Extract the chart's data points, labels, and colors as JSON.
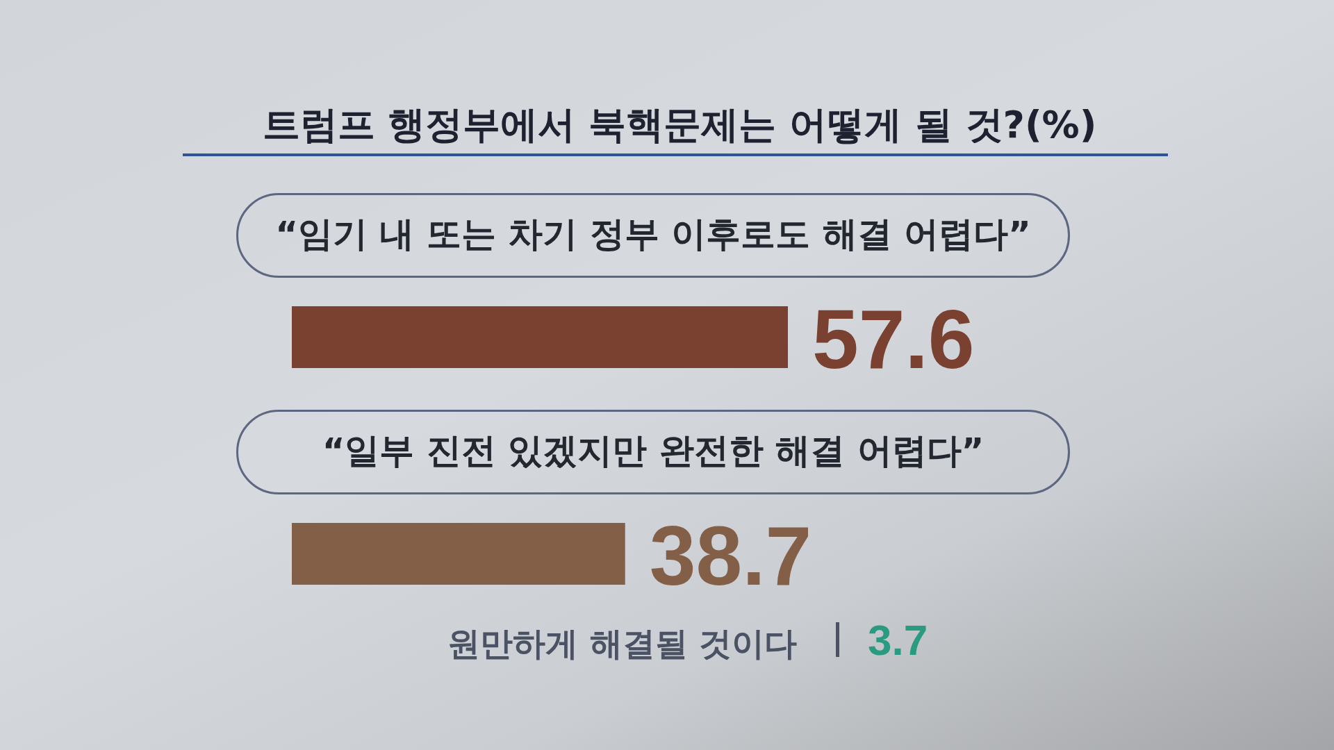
{
  "chart_data": {
    "type": "bar",
    "orientation": "horizontal",
    "title": "트럼프 행정부에서 북핵문제는 어떻게 될 것?(%)",
    "categories": [
      "“임기 내 또는 차기 정부 이후로도 해결 어렵다”",
      "“일부 진전 있겠지만 완전한 해결 어렵다”",
      "원만하게 해결될 것이다"
    ],
    "values": [
      57.6,
      38.7,
      null
    ],
    "colors": [
      "#7a4030",
      "#845f48",
      "#2a9a80"
    ],
    "value_labels": [
      "57.6",
      "38.7",
      "3.7"
    ]
  }
}
